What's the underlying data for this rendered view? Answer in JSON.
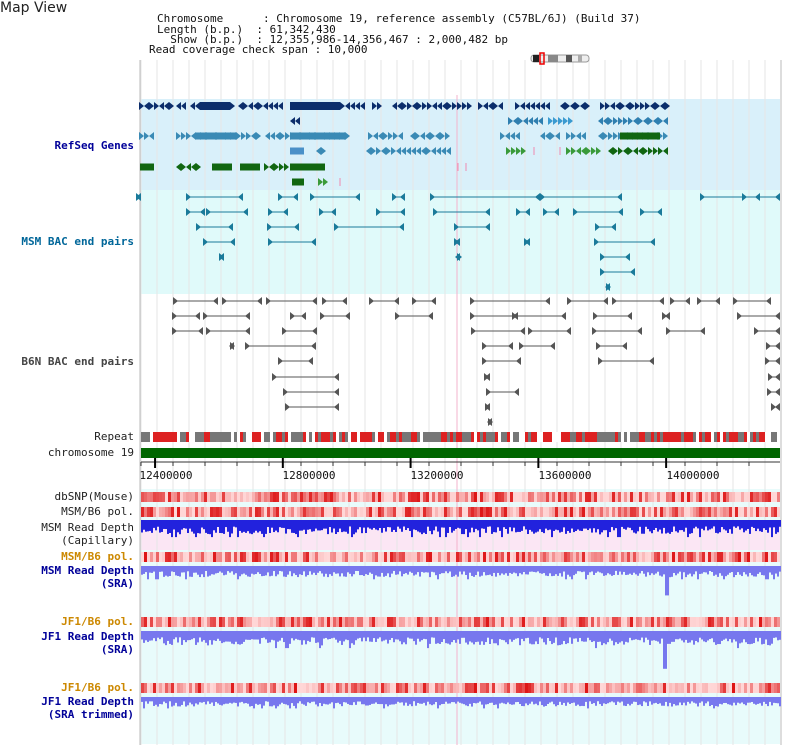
{
  "header": {
    "title": "Map View",
    "info_lines": [
      "Chromosome      : Chromosome 19, reference assembly (C57BL/6J) (Build 37)",
      "Length (b.p.)  : 61,342,430",
      "  Show (b.p.)  : 12,355,986-14,356,467 : 2,000,482 bp",
      "Read coverage check span : 10,000"
    ]
  },
  "tracks": {
    "refseq": {
      "label": "RefSeq Genes",
      "color": "#000099"
    },
    "msm_bac": {
      "label": "MSM BAC end pairs",
      "color": "#006699"
    },
    "b6n_bac": {
      "label": "B6N BAC end pairs",
      "color": "#444444"
    },
    "repeat": {
      "label": "Repeat"
    },
    "chrom": {
      "label": "chromosome 19"
    },
    "dbsnp": {
      "label": "dbSNP(Mouse)"
    },
    "msm_b6_pol_1": {
      "label": "MSM/B6 pol."
    },
    "msm_depth_cap": {
      "label1": "MSM Read Depth",
      "label2": "(Capillary)"
    },
    "msm_b6_pol_2": {
      "label": "MSM/B6 pol.",
      "color": "#cc8800"
    },
    "msm_depth_sra": {
      "label1": "MSM Read Depth",
      "label2": "(SRA)"
    },
    "jf1_b6_pol_1": {
      "label": "JF1/B6 pol.",
      "color": "#cc8800"
    },
    "jf1_depth_sra": {
      "label1": "JF1 Read Depth",
      "label2": "(SRA)"
    },
    "jf1_b6_pol_2": {
      "label": "JF1/B6 pol.",
      "color": "#cc8800"
    },
    "jf1_depth_trim": {
      "label1": "JF1 Read Depth",
      "label2": "(SRA trimmed)"
    }
  },
  "ruler": {
    "ticks": [
      {
        "label": "12400000",
        "pos": 12400000
      },
      {
        "label": "12800000",
        "pos": 12800000
      },
      {
        "label": "13200000",
        "pos": 13200000
      },
      {
        "label": "13600000",
        "pos": 13600000
      },
      {
        "label": "14000000",
        "pos": 14000000
      }
    ],
    "start": 12355986,
    "end": 14356467
  },
  "colors": {
    "refseq_bg": "#d9f0fa",
    "bac_bg": "#e0fafa",
    "depth_bg": "#e8fbfb",
    "depth_bar": "#7777ee",
    "cap_bar": "#2222dd",
    "cap_bg": "#fbe6f4",
    "pol_low": "#ffd0d0",
    "pol_high": "#dd0000",
    "chrom_green": "#006600",
    "label_blue": "#000099",
    "label_teal": "#006699",
    "label_orange": "#cc8800"
  }
}
